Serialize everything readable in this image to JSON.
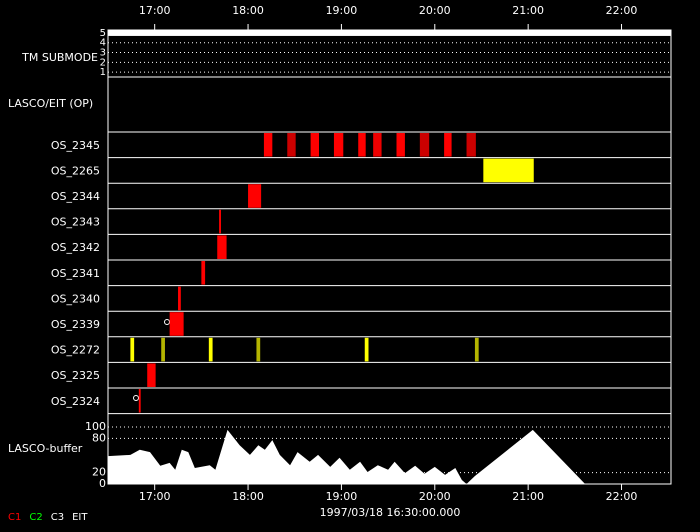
{
  "chart_data": {
    "type": "timeline",
    "xlim": [
      16.5,
      22.53
    ],
    "xticks": [
      {
        "value": 17,
        "label": "17:00"
      },
      {
        "value": 18,
        "label": "18:00"
      },
      {
        "value": 19,
        "label": "19:00"
      },
      {
        "value": 20,
        "label": "20:00"
      },
      {
        "value": 21,
        "label": "21:00"
      },
      {
        "value": 22,
        "label": "22:00"
      }
    ],
    "xlabel": "1997/03/18 16:30:00.000",
    "submode": {
      "label": "TM SUBMODE",
      "ylim": [
        0.5,
        5.3
      ],
      "yticks": [
        5,
        4,
        3,
        2,
        1
      ],
      "value": 5,
      "color": "#ffffff"
    },
    "section_label": "LASCO/EIT (OP)",
    "rows": [
      {
        "name": "OS_2345",
        "intervals": [
          {
            "start": 18.17,
            "end": 18.26,
            "color": "#ff0000"
          },
          {
            "start": 18.42,
            "end": 18.51,
            "color": "#cc0000"
          },
          {
            "start": 18.67,
            "end": 18.76,
            "color": "#ff0000"
          },
          {
            "start": 18.92,
            "end": 19.02,
            "color": "#ff0000"
          },
          {
            "start": 19.18,
            "end": 19.26,
            "color": "#ff0000"
          },
          {
            "start": 19.34,
            "end": 19.43,
            "color": "#ee0000"
          },
          {
            "start": 19.59,
            "end": 19.68,
            "color": "#ff0000"
          },
          {
            "start": 19.84,
            "end": 19.94,
            "color": "#cc0000"
          },
          {
            "start": 20.1,
            "end": 20.18,
            "color": "#ff0000"
          },
          {
            "start": 20.34,
            "end": 20.44,
            "color": "#cc0000"
          }
        ]
      },
      {
        "name": "OS_2265",
        "intervals": [
          {
            "start": 20.52,
            "end": 21.06,
            "color": "#ffff00"
          }
        ]
      },
      {
        "name": "OS_2344",
        "intervals": [
          {
            "start": 18.0,
            "end": 18.14,
            "color": "#ff0000"
          }
        ]
      },
      {
        "name": "OS_2343",
        "intervals": [
          {
            "start": 17.69,
            "end": 17.71,
            "color": "#ff0000"
          }
        ]
      },
      {
        "name": "OS_2342",
        "intervals": [
          {
            "start": 17.67,
            "end": 17.77,
            "color": "#ff0000"
          }
        ]
      },
      {
        "name": "OS_2341",
        "intervals": [
          {
            "start": 17.5,
            "end": 17.54,
            "color": "#ff0000"
          }
        ]
      },
      {
        "name": "OS_2340",
        "intervals": [
          {
            "start": 17.25,
            "end": 17.28,
            "color": "#ff0000"
          }
        ]
      },
      {
        "name": "OS_2339",
        "intervals": [
          {
            "start": 17.16,
            "end": 17.31,
            "color": "#ff0000"
          }
        ]
      },
      {
        "name": "OS_2272",
        "intervals": [
          {
            "start": 16.74,
            "end": 16.78,
            "color": "#ffff00"
          },
          {
            "start": 17.07,
            "end": 17.11,
            "color": "#b4b400"
          },
          {
            "start": 17.58,
            "end": 17.62,
            "color": "#ffff00"
          },
          {
            "start": 18.09,
            "end": 18.13,
            "color": "#b4b400"
          },
          {
            "start": 19.25,
            "end": 19.29,
            "color": "#ffff00"
          },
          {
            "start": 20.43,
            "end": 20.47,
            "color": "#b4b400"
          }
        ]
      },
      {
        "name": "OS_2325",
        "intervals": [
          {
            "start": 16.92,
            "end": 17.01,
            "color": "#ff0000"
          }
        ]
      },
      {
        "name": "OS_2324",
        "intervals": [
          {
            "start": 16.83,
            "end": 16.85,
            "color": "#ff0000"
          }
        ]
      }
    ],
    "buffer": {
      "label": "LASCO-buffer",
      "ylim": [
        0,
        100
      ],
      "yticks": [
        100,
        80,
        20,
        0
      ],
      "color": "#ffffff",
      "x": [
        16.5,
        16.74,
        16.84,
        16.95,
        17.06,
        17.16,
        17.22,
        17.29,
        17.36,
        17.43,
        17.59,
        17.65,
        17.78,
        17.91,
        18.02,
        18.11,
        18.18,
        18.26,
        18.34,
        18.45,
        18.53,
        18.66,
        18.75,
        18.88,
        18.98,
        19.09,
        19.2,
        19.28,
        19.39,
        19.5,
        19.57,
        19.68,
        19.79,
        19.89,
        20.0,
        20.11,
        20.22,
        20.29,
        20.34,
        20.43,
        21.05,
        21.61,
        22.53
      ],
      "values": [
        49,
        51,
        60,
        56,
        32,
        37,
        25,
        60,
        56,
        28,
        33,
        25,
        95,
        68,
        51,
        68,
        60,
        77,
        51,
        33,
        56,
        39,
        51,
        30,
        46,
        25,
        39,
        21,
        33,
        25,
        39,
        19,
        32,
        18,
        30,
        16,
        28,
        7,
        0,
        14,
        95,
        0,
        0
      ]
    },
    "legend": [
      {
        "name": "C1",
        "color": "#ff0000"
      },
      {
        "name": "C2",
        "color": "#00ff00"
      },
      {
        "name": "C3",
        "color": "#ffffff"
      },
      {
        "name": "EIT",
        "color": "#ffffff"
      }
    ]
  }
}
